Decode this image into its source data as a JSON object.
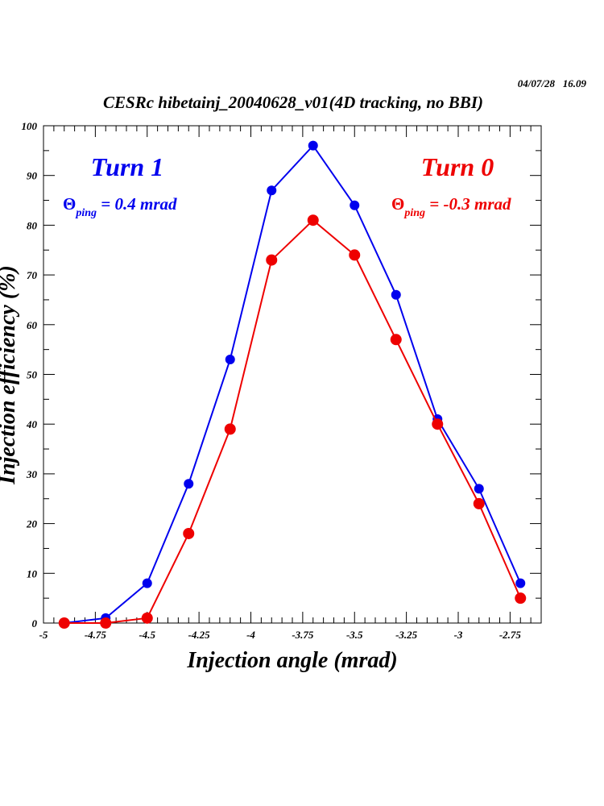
{
  "timestamp": "04/07/28   16.09",
  "chart_data": {
    "type": "line",
    "title": "CESRc hibetainj_20040628_v01(4D tracking, no BBI)",
    "xlabel": "Injection angle (mrad)",
    "ylabel": "Injection efficiency (%)",
    "xlim": [
      -5,
      -2.6
    ],
    "ylim": [
      0,
      100
    ],
    "xticks": [
      -5,
      -4.75,
      -4.5,
      -4.25,
      -4,
      -3.75,
      -3.5,
      -3.25,
      -3,
      -2.75
    ],
    "xtick_labels": [
      "-5",
      "-4.75",
      "-4.5",
      "-4.25",
      "-4",
      "-3.75",
      "-3.5",
      "-3.25",
      "-3",
      "-2.75"
    ],
    "yticks": [
      0,
      10,
      20,
      30,
      40,
      50,
      60,
      70,
      80,
      90,
      100
    ],
    "ytick_labels": [
      "0",
      "10",
      "20",
      "30",
      "40",
      "50",
      "60",
      "70",
      "80",
      "90",
      "100"
    ],
    "grid": false,
    "x": [
      -4.9,
      -4.7,
      -4.5,
      -4.3,
      -4.1,
      -3.9,
      -3.7,
      -3.5,
      -3.3,
      -3.1,
      -2.9,
      -2.7
    ],
    "series": [
      {
        "name": "Turn 1",
        "color": "#0000ee",
        "values": [
          0,
          1,
          8,
          28,
          53,
          87,
          96,
          84,
          66,
          41,
          27,
          8
        ]
      },
      {
        "name": "Turn 0",
        "color": "#ee0000",
        "values": [
          0,
          0,
          1,
          18,
          39,
          73,
          81,
          74,
          57,
          40,
          24,
          5
        ]
      }
    ],
    "annotations": {
      "turn1": {
        "label": "Turn 1",
        "theta": "Θ",
        "sub": "ping",
        "value": " = 0.4 mrad"
      },
      "turn0": {
        "label": "Turn 0",
        "theta": "Θ",
        "sub": "ping",
        "value": " = -0.3 mrad"
      }
    }
  }
}
